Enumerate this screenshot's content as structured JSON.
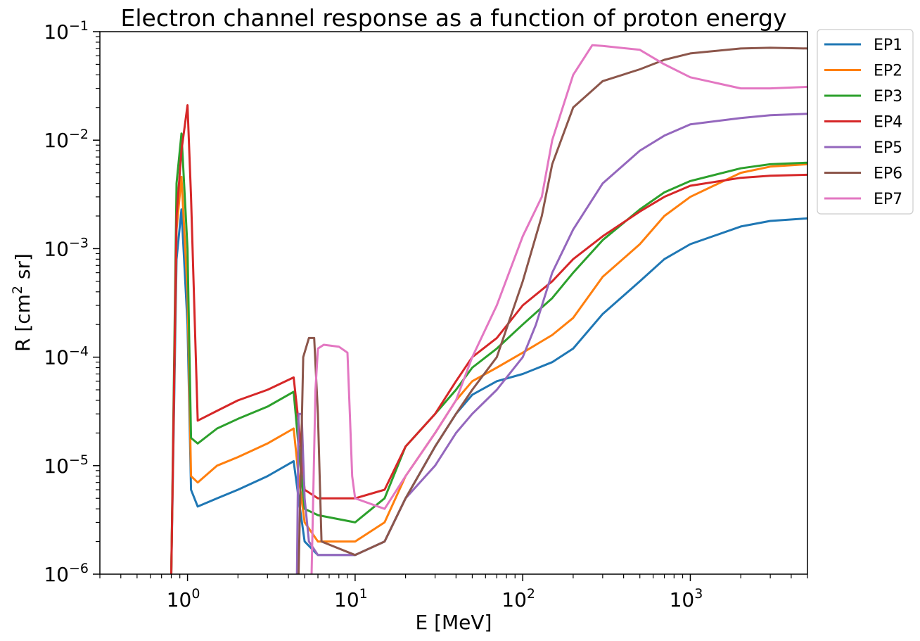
{
  "chart_data": {
    "type": "line",
    "title": "Electron channel response as a function of proton energy",
    "xlabel": "E [MeV]",
    "ylabel_main": "R [cm",
    "ylabel_sup": "2",
    "ylabel_rest": " sr]",
    "xscale": "log",
    "yscale": "log",
    "xlim": [
      0.3,
      5000
    ],
    "ylim": [
      1e-06,
      0.1
    ],
    "x_major_ticks": [
      {
        "value": 1,
        "base": "10",
        "exp": "0"
      },
      {
        "value": 10,
        "base": "10",
        "exp": "1"
      },
      {
        "value": 100,
        "base": "10",
        "exp": "2"
      },
      {
        "value": 1000,
        "base": "10",
        "exp": "3"
      }
    ],
    "y_major_ticks": [
      {
        "value": 1e-06,
        "base": "10",
        "exp": "−6"
      },
      {
        "value": 1e-05,
        "base": "10",
        "exp": "−5"
      },
      {
        "value": 0.0001,
        "base": "10",
        "exp": "−4"
      },
      {
        "value": 0.001,
        "base": "10",
        "exp": "−3"
      },
      {
        "value": 0.01,
        "base": "10",
        "exp": "−2"
      },
      {
        "value": 0.1,
        "base": "10",
        "exp": "−1"
      }
    ],
    "grid": false,
    "legend_position": "outside-top-right",
    "series": [
      {
        "name": "EP1",
        "color": "#1f77b4",
        "x": [
          0.8,
          0.86,
          0.92,
          1.0,
          1.05,
          1.15,
          1.5,
          2.0,
          3.0,
          4.3,
          4.6,
          5.0,
          6.0,
          10,
          15,
          20,
          30,
          40,
          50,
          70,
          100,
          150,
          200,
          300,
          500,
          700,
          1000,
          2000,
          3000,
          5000
        ],
        "y": [
          1e-06,
          0.0008,
          0.0023,
          0.0002,
          6e-06,
          4.2e-06,
          5e-06,
          6e-06,
          8e-06,
          1.1e-05,
          5e-06,
          2e-06,
          1.5e-06,
          1.5e-06,
          2e-06,
          5e-06,
          1.5e-05,
          3e-05,
          4.5e-05,
          6e-05,
          7e-05,
          9e-05,
          0.00012,
          0.00025,
          0.0005,
          0.0008,
          0.0011,
          0.0016,
          0.0018,
          0.0019
        ]
      },
      {
        "name": "EP2",
        "color": "#ff7f0e",
        "x": [
          0.8,
          0.86,
          0.92,
          1.0,
          1.05,
          1.15,
          1.5,
          2.0,
          3.0,
          4.3,
          4.6,
          5.0,
          6.0,
          10,
          15,
          20,
          30,
          40,
          50,
          70,
          100,
          150,
          200,
          300,
          500,
          700,
          1000,
          2000,
          3000,
          5000
        ],
        "y": [
          1e-06,
          0.0015,
          0.0046,
          0.0004,
          8e-06,
          7e-06,
          1e-05,
          1.2e-05,
          1.6e-05,
          2.2e-05,
          8e-06,
          3e-06,
          2e-06,
          2e-06,
          3e-06,
          8e-06,
          2e-05,
          4e-05,
          6e-05,
          8e-05,
          0.00011,
          0.00016,
          0.00023,
          0.00055,
          0.0011,
          0.002,
          0.003,
          0.005,
          0.0057,
          0.006
        ]
      },
      {
        "name": "EP3",
        "color": "#2ca02c",
        "x": [
          0.8,
          0.86,
          0.92,
          1.0,
          1.05,
          1.15,
          1.5,
          2.0,
          3.0,
          4.3,
          4.6,
          5.0,
          6.0,
          10,
          15,
          20,
          30,
          40,
          50,
          70,
          100,
          150,
          200,
          300,
          500,
          700,
          1000,
          2000,
          3000,
          5000
        ],
        "y": [
          1e-06,
          0.004,
          0.0115,
          0.001,
          1.8e-05,
          1.6e-05,
          2.2e-05,
          2.7e-05,
          3.5e-05,
          4.8e-05,
          1.5e-05,
          4e-06,
          3.5e-06,
          3e-06,
          5e-06,
          1.5e-05,
          3e-05,
          5e-05,
          8e-05,
          0.00012,
          0.0002,
          0.00035,
          0.0006,
          0.0012,
          0.0023,
          0.0033,
          0.0042,
          0.0055,
          0.006,
          0.0062
        ]
      },
      {
        "name": "EP4",
        "color": "#d62728",
        "x": [
          0.8,
          0.86,
          0.92,
          1.0,
          1.05,
          1.15,
          1.5,
          2.0,
          3.0,
          4.3,
          4.6,
          5.0,
          6.0,
          10,
          15,
          20,
          30,
          40,
          50,
          70,
          100,
          150,
          200,
          300,
          500,
          700,
          1000,
          2000,
          3000,
          5000
        ],
        "y": [
          1e-06,
          0.002,
          0.008,
          0.021,
          0.003,
          2.6e-05,
          3.2e-05,
          4e-05,
          5e-05,
          6.5e-05,
          2.5e-05,
          6e-06,
          5e-06,
          5e-06,
          6e-06,
          1.5e-05,
          3e-05,
          6e-05,
          0.0001,
          0.00015,
          0.0003,
          0.0005,
          0.0008,
          0.0013,
          0.0022,
          0.003,
          0.0038,
          0.0045,
          0.0047,
          0.0048
        ]
      },
      {
        "name": "EP5",
        "color": "#9467bd",
        "x": [
          4.5,
          4.6,
          4.8,
          5.0,
          5.3,
          6,
          10,
          15,
          20,
          30,
          40,
          50,
          70,
          100,
          120,
          150,
          200,
          300,
          500,
          700,
          1000,
          2000,
          3000,
          5000
        ],
        "y": [
          1e-06,
          3e-05,
          3e-05,
          5e-06,
          2e-06,
          1.5e-06,
          1.5e-06,
          2e-06,
          5e-06,
          1e-05,
          2e-05,
          3e-05,
          5e-05,
          0.0001,
          0.0002,
          0.0006,
          0.0015,
          0.004,
          0.008,
          0.011,
          0.014,
          0.016,
          0.017,
          0.0175
        ]
      },
      {
        "name": "EP6",
        "color": "#8c564b",
        "x": [
          4.6,
          4.9,
          5.3,
          5.7,
          6.0,
          6.3,
          10,
          15,
          20,
          30,
          40,
          50,
          70,
          100,
          130,
          150,
          200,
          300,
          500,
          700,
          1000,
          2000,
          3000,
          5000
        ],
        "y": [
          1e-06,
          0.0001,
          0.00015,
          0.00015,
          3e-05,
          2e-06,
          1.5e-06,
          2e-06,
          5e-06,
          1.5e-05,
          3e-05,
          5e-05,
          0.0001,
          0.0005,
          0.002,
          0.006,
          0.02,
          0.035,
          0.045,
          0.055,
          0.063,
          0.07,
          0.071,
          0.07
        ]
      },
      {
        "name": "EP7",
        "color": "#e377c2",
        "x": [
          5.5,
          5.8,
          6.0,
          6.5,
          8.0,
          9.0,
          9.3,
          9.6,
          10,
          15,
          20,
          30,
          40,
          50,
          70,
          100,
          130,
          150,
          200,
          260,
          300,
          500,
          700,
          1000,
          2000,
          3000,
          5000
        ],
        "y": [
          1e-06,
          5e-05,
          0.00012,
          0.00013,
          0.000125,
          0.00011,
          3e-05,
          8e-06,
          5e-06,
          4e-06,
          8e-06,
          2e-05,
          4e-05,
          0.0001,
          0.0003,
          0.0013,
          0.003,
          0.01,
          0.04,
          0.075,
          0.074,
          0.068,
          0.05,
          0.038,
          0.03,
          0.03,
          0.031
        ]
      }
    ]
  }
}
